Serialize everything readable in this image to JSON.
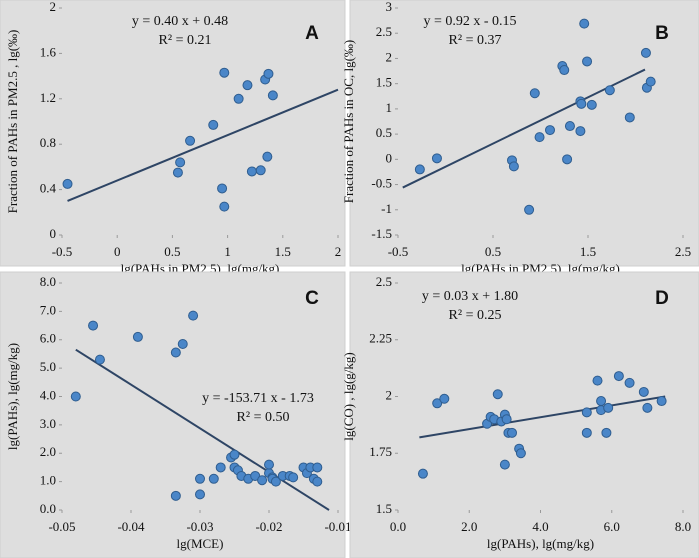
{
  "chart_data": [
    {
      "type": "scatter",
      "label": "A",
      "equation": [
        "y = 0.40 x + 0.48",
        "R² = 0.21"
      ],
      "x_label": "lg(PAHs in PM2.5), lg(mg/kg)",
      "y_label": "Fraction of PAHs in PM2.5 , lg(‰)",
      "xlim": [
        -0.5,
        2
      ],
      "ylim": [
        0,
        2
      ],
      "xticks": [
        -0.5,
        0,
        0.5,
        1,
        1.5,
        2
      ],
      "yticks": [
        0,
        0.4,
        0.8,
        1.2,
        1.6,
        2
      ],
      "color": "#4a86c8",
      "x": [
        -0.45,
        0.55,
        0.57,
        0.66,
        0.87,
        0.95,
        0.97,
        0.97,
        1.1,
        1.18,
        1.22,
        1.3,
        1.34,
        1.36,
        1.37,
        1.41
      ],
      "y": [
        0.45,
        0.55,
        0.64,
        0.83,
        0.97,
        0.41,
        0.25,
        1.43,
        1.2,
        1.32,
        0.56,
        0.57,
        1.37,
        0.69,
        1.42,
        1.23
      ],
      "trendline": {
        "x": [
          -0.45,
          2
        ],
        "y": [
          0.3,
          1.28
        ],
        "color": "#2e4565"
      }
    },
    {
      "type": "scatter",
      "label": "B",
      "equation": [
        "y = 0.92 x - 0.15",
        "R² = 0.37"
      ],
      "x_label": "lg(PAHs in PM2.5), lg(mg/kg)",
      "y_label": "Fraction of PAHs in OC, lg(‰)",
      "xlim": [
        -0.5,
        2.5
      ],
      "ylim": [
        -1.5,
        3
      ],
      "xticks": [
        -0.5,
        0.5,
        1.5,
        2.5
      ],
      "yticks": [
        -1.5,
        -1,
        -0.5,
        0,
        0.5,
        1,
        1.5,
        2,
        2.5,
        3
      ],
      "color": "#4a86c8",
      "x": [
        -0.27,
        -0.09,
        0.7,
        0.72,
        0.88,
        0.94,
        0.99,
        1.1,
        1.23,
        1.25,
        1.28,
        1.31,
        1.42,
        1.43,
        1.42,
        1.46,
        1.49,
        1.54,
        1.73,
        1.94,
        2.11,
        2.12,
        2.16
      ],
      "y": [
        -0.2,
        0.02,
        -0.02,
        -0.14,
        -1.0,
        1.31,
        0.44,
        0.58,
        1.85,
        1.77,
        0.0,
        0.66,
        1.15,
        1.1,
        0.56,
        2.69,
        1.94,
        1.08,
        1.37,
        0.83,
        2.11,
        1.42,
        1.54
      ],
      "trendline": {
        "x": [
          -0.45,
          2.1
        ],
        "y": [
          -0.56,
          1.78
        ],
        "color": "#2e4565"
      }
    },
    {
      "type": "scatter",
      "label": "C",
      "equation": [
        "y = -153.71 x - 1.73",
        "R² = 0.50"
      ],
      "x_label": "lg(MCE)",
      "y_label": "lg(PAHs), lg(mg/kg)",
      "xlim": [
        -0.05,
        -0.01
      ],
      "ylim": [
        0,
        8
      ],
      "xticks": [
        -0.05,
        -0.04,
        -0.03,
        -0.02,
        -0.01
      ],
      "yticks": [
        {
          "value": 0,
          "label": "0.0"
        },
        {
          "value": 1,
          "label": "1.0"
        },
        {
          "value": 2,
          "label": "2.0"
        },
        {
          "value": 3,
          "label": "3.0"
        },
        {
          "value": 4,
          "label": "4.0"
        },
        {
          "value": 5,
          "label": "5.0"
        },
        {
          "value": 6,
          "label": "6.0"
        },
        {
          "value": 7,
          "label": "7.0"
        },
        {
          "value": 8,
          "label": "8.0"
        }
      ],
      "color": "#4a86c8",
      "x": [
        -0.048,
        -0.0455,
        -0.0445,
        -0.039,
        -0.0335,
        -0.0325,
        -0.031,
        -0.0335,
        -0.03,
        -0.03,
        -0.028,
        -0.027,
        -0.0255,
        -0.025,
        -0.025,
        -0.0245,
        -0.024,
        -0.023,
        -0.022,
        -0.021,
        -0.02,
        -0.02,
        -0.0195,
        -0.0195,
        -0.019,
        -0.018,
        -0.017,
        -0.0165,
        -0.015,
        -0.0145,
        -0.014,
        -0.0135,
        -0.013,
        -0.013
      ],
      "y": [
        4.0,
        6.5,
        5.3,
        6.1,
        5.55,
        5.85,
        6.85,
        0.5,
        0.55,
        1.1,
        1.1,
        1.5,
        1.85,
        1.95,
        1.5,
        1.4,
        1.2,
        1.1,
        1.2,
        1.05,
        1.3,
        1.6,
        1.15,
        1.1,
        1.0,
        1.2,
        1.2,
        1.15,
        1.5,
        1.3,
        1.5,
        1.1,
        1.5,
        1.0
      ],
      "trendline": {
        "x": [
          -0.048,
          -0.0113
        ],
        "y": [
          5.65,
          0
        ],
        "color": "#2e4565"
      }
    },
    {
      "type": "scatter",
      "label": "D",
      "equation": [
        "y = 0.03 x + 1.80",
        "R² = 0.25"
      ],
      "x_label": "lg(PAHs), lg(mg/kg)",
      "y_label": "lg(CO) , lg(g/kg)",
      "xlim": [
        0,
        8
      ],
      "ylim": [
        1.5,
        2.5
      ],
      "xticks": [
        {
          "value": 0,
          "label": "0.0"
        },
        {
          "value": 2,
          "label": "2.0"
        },
        {
          "value": 4,
          "label": "4.0"
        },
        {
          "value": 6,
          "label": "6.0"
        },
        {
          "value": 8,
          "label": "8.0"
        }
      ],
      "yticks": [
        1.5,
        1.75,
        2,
        2.25,
        2.5
      ],
      "color": "#4a86c8",
      "x": [
        0.7,
        1.1,
        1.3,
        2.5,
        2.6,
        2.7,
        2.8,
        2.9,
        3.0,
        3.05,
        3.0,
        3.1,
        3.2,
        3.4,
        3.45,
        5.3,
        5.3,
        5.6,
        5.7,
        5.7,
        5.85,
        5.9,
        6.2,
        6.5,
        6.9,
        7.0,
        7.4
      ],
      "y": [
        1.66,
        1.97,
        1.99,
        1.88,
        1.91,
        1.9,
        2.01,
        1.89,
        1.92,
        1.9,
        1.7,
        1.84,
        1.84,
        1.77,
        1.75,
        1.93,
        1.84,
        2.07,
        1.98,
        1.94,
        1.84,
        1.95,
        2.09,
        2.06,
        2.02,
        1.95,
        1.98
      ],
      "trendline": {
        "x": [
          0.6,
          7.5
        ],
        "y": [
          1.82,
          2.0
        ],
        "color": "#2e4565"
      }
    }
  ]
}
